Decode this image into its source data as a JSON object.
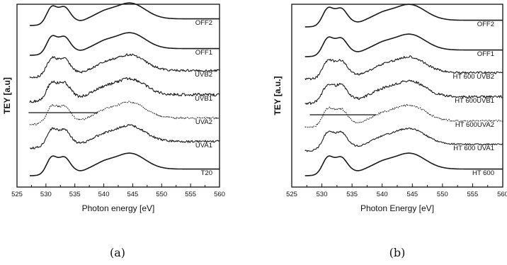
{
  "chart_data": [
    {
      "type": "line",
      "panel_label": "(a)",
      "xlabel": "Photon energy [eV]",
      "ylabel": "TEY [a.u]",
      "xlim": [
        525,
        560
      ],
      "x_ticks": [
        525,
        530,
        535,
        540,
        545,
        550,
        555,
        560
      ],
      "y_ticks_shown": false,
      "grid": false,
      "series": [
        {
          "name": "OFF2",
          "noise": 0,
          "dashed": false
        },
        {
          "name": "OFF1",
          "noise": 0,
          "dashed": false
        },
        {
          "name": "UVB2",
          "noise": 0.35,
          "dashed": false
        },
        {
          "name": "UVB1",
          "noise": 0.45,
          "dashed": false
        },
        {
          "name": "UVA2",
          "noise": 0.3,
          "dashed": true
        },
        {
          "name": "UVA1",
          "noise": 0.35,
          "dashed": false
        },
        {
          "name": "T20",
          "noise": 0,
          "dashed": false
        }
      ],
      "reference_line": {
        "x_start": 527,
        "x_end": 539
      }
    },
    {
      "type": "line",
      "panel_label": "(b)",
      "xlabel": "Photon Energy [eV]",
      "ylabel": "TEY [a.u.]",
      "xlim": [
        525,
        560
      ],
      "x_ticks": [
        525,
        530,
        535,
        540,
        545,
        550,
        555,
        560
      ],
      "y_ticks_shown": false,
      "grid": false,
      "series": [
        {
          "name": "OFF2",
          "noise": 0,
          "dashed": false
        },
        {
          "name": "OFF1",
          "noise": 0,
          "dashed": false
        },
        {
          "name": "HT 600 UVB2",
          "noise": 0.35,
          "dashed": false
        },
        {
          "name": "HT 600UVB1",
          "noise": 0.4,
          "dashed": false
        },
        {
          "name": "HT 600UVA2",
          "noise": 0.3,
          "dashed": true
        },
        {
          "name": "HT 600 UVA1",
          "noise": 0.25,
          "dashed": false
        },
        {
          "name": "HT 600",
          "noise": 0,
          "dashed": false
        }
      ],
      "reference_line": {
        "x_start": 528,
        "x_end": 539
      }
    }
  ]
}
